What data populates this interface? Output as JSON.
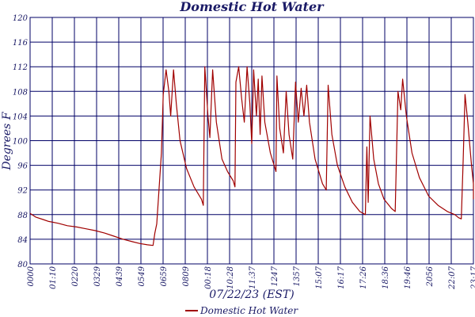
{
  "chart_data": {
    "type": "line",
    "title": "Domestic Hot Water",
    "xlabel": "07/22/23 (EST)",
    "ylabel": "Degrees F",
    "ylim": [
      80,
      120
    ],
    "y_ticks": [
      "80",
      "84",
      "88",
      "92",
      "96",
      "100",
      "104",
      "108",
      "112",
      "116",
      "120"
    ],
    "x_ticks": [
      "0000",
      "01:10",
      "0220",
      "0329",
      "0439",
      "0549",
      "0659",
      "0809",
      "00:18",
      "10:28",
      "11:37",
      "1247",
      "1357",
      "15:07",
      "16:17",
      "17:26",
      "18:36",
      "19:46",
      "2056",
      "22:07",
      "23:17"
    ],
    "x_range_hours": [
      0,
      23.8
    ],
    "grid": true,
    "legend_position": "bottom",
    "colors": {
      "series": "#a00000",
      "grid": "#000066",
      "text": "#1a1a66"
    },
    "series": [
      {
        "name": "Domestic Hot Water",
        "points": [
          [
            0.0,
            88.2
          ],
          [
            0.3,
            87.6
          ],
          [
            0.7,
            87.2
          ],
          [
            1.0,
            86.9
          ],
          [
            1.5,
            86.6
          ],
          [
            2.0,
            86.2
          ],
          [
            2.5,
            86.0
          ],
          [
            3.0,
            85.7
          ],
          [
            3.5,
            85.4
          ],
          [
            4.0,
            85.0
          ],
          [
            4.5,
            84.5
          ],
          [
            5.0,
            84.0
          ],
          [
            5.5,
            83.6
          ],
          [
            5.9,
            83.3
          ],
          [
            6.3,
            83.1
          ],
          [
            6.6,
            83.0
          ],
          [
            6.7,
            85.0
          ],
          [
            6.8,
            86.5
          ],
          [
            7.05,
            98.0
          ],
          [
            7.15,
            107.5
          ],
          [
            7.3,
            111.5
          ],
          [
            7.45,
            108.0
          ],
          [
            7.55,
            104.0
          ],
          [
            7.7,
            111.5
          ],
          [
            7.85,
            106.0
          ],
          [
            8.05,
            100.0
          ],
          [
            8.4,
            95.5
          ],
          [
            8.8,
            92.5
          ],
          [
            9.2,
            90.5
          ],
          [
            9.3,
            89.5
          ],
          [
            9.38,
            112.0
          ],
          [
            9.55,
            104.0
          ],
          [
            9.65,
            100.5
          ],
          [
            9.8,
            111.5
          ],
          [
            10.0,
            103.0
          ],
          [
            10.3,
            97.0
          ],
          [
            10.6,
            95.0
          ],
          [
            10.9,
            93.5
          ],
          [
            11.0,
            92.5
          ],
          [
            11.05,
            109.5
          ],
          [
            11.2,
            112.0
          ],
          [
            11.35,
            107.0
          ],
          [
            11.5,
            103.0
          ],
          [
            11.65,
            112.0
          ],
          [
            11.8,
            106.0
          ],
          [
            11.9,
            99.5
          ],
          [
            12.0,
            111.5
          ],
          [
            12.15,
            104.0
          ],
          [
            12.25,
            110.0
          ],
          [
            12.35,
            101.0
          ],
          [
            12.45,
            110.5
          ],
          [
            12.6,
            103.0
          ],
          [
            12.9,
            98.0
          ],
          [
            13.2,
            95.0
          ],
          [
            13.25,
            110.5
          ],
          [
            13.4,
            102.0
          ],
          [
            13.6,
            98.0
          ],
          [
            13.75,
            108.0
          ],
          [
            13.9,
            101.0
          ],
          [
            14.1,
            97.0
          ],
          [
            14.25,
            109.5
          ],
          [
            14.4,
            103.0
          ],
          [
            14.55,
            108.5
          ],
          [
            14.7,
            104.0
          ],
          [
            14.85,
            109.0
          ],
          [
            15.0,
            103.0
          ],
          [
            15.3,
            97.0
          ],
          [
            15.7,
            93.0
          ],
          [
            15.9,
            92.0
          ],
          [
            16.0,
            109.0
          ],
          [
            16.2,
            101.0
          ],
          [
            16.5,
            96.0
          ],
          [
            16.9,
            92.5
          ],
          [
            17.3,
            90.0
          ],
          [
            17.7,
            88.5
          ],
          [
            18.0,
            88.0
          ],
          [
            18.08,
            99.0
          ],
          [
            18.15,
            90.0
          ],
          [
            18.25,
            104.0
          ],
          [
            18.45,
            97.0
          ],
          [
            18.7,
            93.0
          ],
          [
            19.0,
            90.5
          ],
          [
            19.4,
            89.0
          ],
          [
            19.6,
            88.5
          ],
          [
            19.75,
            108.0
          ],
          [
            19.9,
            105.0
          ],
          [
            20.0,
            110.0
          ],
          [
            20.2,
            104.0
          ],
          [
            20.5,
            98.0
          ],
          [
            20.9,
            94.0
          ],
          [
            21.4,
            91.0
          ],
          [
            21.9,
            89.5
          ],
          [
            22.4,
            88.5
          ],
          [
            22.8,
            88.0
          ],
          [
            23.0,
            87.5
          ],
          [
            23.15,
            87.3
          ],
          [
            23.25,
            97.0
          ],
          [
            23.35,
            107.5
          ],
          [
            23.5,
            103.0
          ],
          [
            23.7,
            96.0
          ],
          [
            23.85,
            93.0
          ],
          [
            23.95,
            92.0
          ],
          [
            24.1,
            90.5
          ]
        ]
      }
    ]
  }
}
